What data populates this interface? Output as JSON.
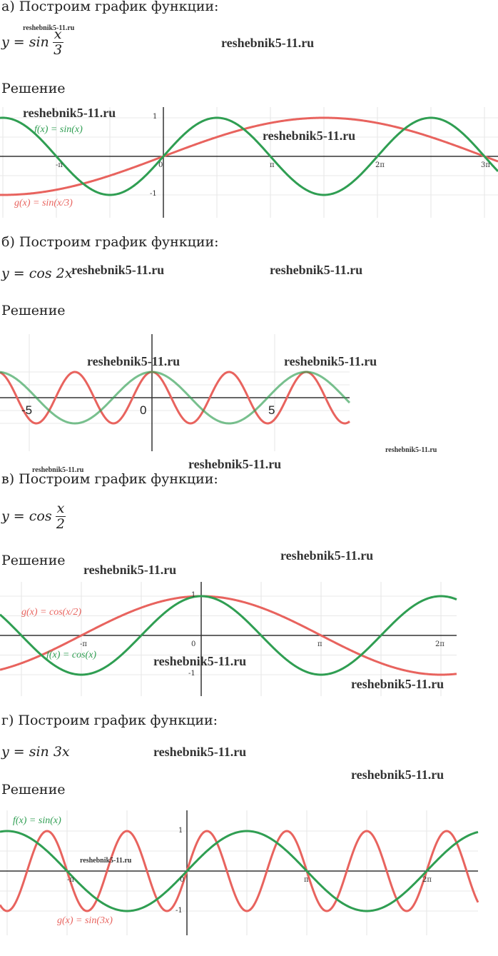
{
  "sections": [
    {
      "heading": "а) Построим график функции:",
      "formula": {
        "lhs": "y = sin",
        "num": "x",
        "den": "3"
      },
      "solution": "Решение",
      "graph": {
        "f_label": "f(x) = sin(x)",
        "g_label": "g(x) = sin(x/3)",
        "x_ticks": [
          "-π",
          "0",
          "π",
          "2π",
          "3π"
        ],
        "y_ticks": [
          "1",
          "-1"
        ]
      }
    },
    {
      "heading": "б) Построим график функции:",
      "formula": {
        "lhs": "y = cos 2x"
      },
      "solution": "Решение",
      "graph": {
        "x_ticks": [
          "-5",
          "0",
          "5"
        ]
      }
    },
    {
      "heading": "в) Построим график функции:",
      "formula": {
        "lhs": "y = cos",
        "num": "x",
        "den": "2"
      },
      "solution": "Решение",
      "graph": {
        "f_label": "f(x) = cos(x)",
        "g_label": "g(x) = cos(x/2)",
        "x_ticks": [
          "-π",
          "0",
          "π",
          "2π"
        ],
        "y_ticks": [
          "1",
          "-1"
        ]
      }
    },
    {
      "heading": "г) Построим график функции:",
      "formula": {
        "lhs": "y = sin 3x"
      },
      "solution": "Решение",
      "graph": {
        "f_label": "f(x) = sin(x)",
        "g_label": "g(x) = sin(3x)",
        "x_ticks": [
          "-π",
          "0",
          "π",
          "2π"
        ],
        "y_ticks": [
          "1",
          "-1"
        ]
      }
    }
  ],
  "watermarks": [
    "reshebnik5-11.ru",
    "reshebnik5-11.ru",
    "reshebnik5-11.ru",
    "reshebnik5-11.ru",
    "reshebnik5-11.ru",
    "reshebnik5-11.ru",
    "reshebnik5-11.ru",
    "reshebnik5-11.ru",
    "reshebnik5-11.ru",
    "reshebnik5-11.ru",
    "reshebnik5-11.ru",
    "reshebnik5-11.ru",
    "reshebnik5-11.ru",
    "reshebnik5-11.ru",
    "reshebnik5-11.ru",
    "reshebnik5-11.ru",
    "reshebnik5-11.ru",
    "reshebnik5-11.ru"
  ]
}
